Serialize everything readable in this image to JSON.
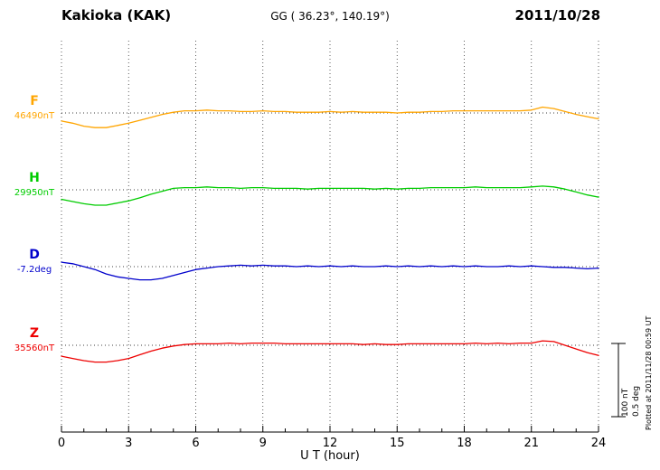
{
  "header": {
    "station": "Kakioka (KAK)",
    "coords": "GG ( 36.23°, 140.19°)",
    "date": "2011/10/28"
  },
  "axis": {
    "xlabel": "U T (hour)"
  },
  "scale_bar": {
    "labels": [
      "100 nT",
      "0.5 deg"
    ]
  },
  "footer_note": "Plotted at 2011/11/28 00:59 UT",
  "chart_data": {
    "type": "line",
    "title": "Kakioka (KAK) magnetogram 2011/10/28",
    "xlabel": "U T (hour)",
    "x_range": [
      0,
      24
    ],
    "x_ticks": [
      0,
      3,
      6,
      9,
      12,
      15,
      18,
      21,
      24
    ],
    "grid": "vertical-dotted",
    "scale": {
      "nT": 100,
      "deg": 0.5
    },
    "series": [
      {
        "name": "F",
        "unit": "nT",
        "baseline_label": "46490nT",
        "baseline_value": 46490,
        "color": "#FFA500",
        "points": [
          [
            0,
            -11
          ],
          [
            0.5,
            -14
          ],
          [
            1,
            -18
          ],
          [
            1.5,
            -20
          ],
          [
            2,
            -20
          ],
          [
            2.5,
            -17
          ],
          [
            3,
            -14
          ],
          [
            3.5,
            -10
          ],
          [
            4,
            -6
          ],
          [
            4.5,
            -2
          ],
          [
            5,
            1
          ],
          [
            5.5,
            3
          ],
          [
            6,
            3
          ],
          [
            6.5,
            4
          ],
          [
            7,
            3
          ],
          [
            7.5,
            3
          ],
          [
            8,
            2
          ],
          [
            8.5,
            2
          ],
          [
            9,
            3
          ],
          [
            9.5,
            2
          ],
          [
            10,
            2
          ],
          [
            10.5,
            1
          ],
          [
            11,
            1
          ],
          [
            11.5,
            1
          ],
          [
            12,
            2
          ],
          [
            12.5,
            1
          ],
          [
            13,
            2
          ],
          [
            13.5,
            1
          ],
          [
            14,
            1
          ],
          [
            14.5,
            1
          ],
          [
            15,
            0
          ],
          [
            15.5,
            1
          ],
          [
            16,
            1
          ],
          [
            16.5,
            2
          ],
          [
            17,
            2
          ],
          [
            17.5,
            3
          ],
          [
            18,
            3
          ],
          [
            18.5,
            3
          ],
          [
            19,
            3
          ],
          [
            19.5,
            3
          ],
          [
            20,
            3
          ],
          [
            20.5,
            3
          ],
          [
            21,
            4
          ],
          [
            21.5,
            8
          ],
          [
            22,
            6
          ],
          [
            22.5,
            2
          ],
          [
            23,
            -2
          ],
          [
            23.5,
            -5
          ],
          [
            24,
            -8
          ]
        ]
      },
      {
        "name": "H",
        "unit": "nT",
        "baseline_label": "29950nT",
        "baseline_value": 29950,
        "color": "#00CC00",
        "points": [
          [
            0,
            -13
          ],
          [
            0.5,
            -16
          ],
          [
            1,
            -19
          ],
          [
            1.5,
            -21
          ],
          [
            2,
            -21
          ],
          [
            2.5,
            -18
          ],
          [
            3,
            -15
          ],
          [
            3.5,
            -11
          ],
          [
            4,
            -6
          ],
          [
            4.5,
            -2
          ],
          [
            5,
            2
          ],
          [
            5.5,
            3
          ],
          [
            6,
            3
          ],
          [
            6.5,
            4
          ],
          [
            7,
            3
          ],
          [
            7.5,
            3
          ],
          [
            8,
            2
          ],
          [
            8.5,
            3
          ],
          [
            9,
            3
          ],
          [
            9.5,
            2
          ],
          [
            10,
            2
          ],
          [
            10.5,
            2
          ],
          [
            11,
            1
          ],
          [
            11.5,
            2
          ],
          [
            12,
            2
          ],
          [
            12.5,
            2
          ],
          [
            13,
            2
          ],
          [
            13.5,
            2
          ],
          [
            14,
            1
          ],
          [
            14.5,
            2
          ],
          [
            15,
            1
          ],
          [
            15.5,
            2
          ],
          [
            16,
            2
          ],
          [
            16.5,
            3
          ],
          [
            17,
            3
          ],
          [
            17.5,
            3
          ],
          [
            18,
            3
          ],
          [
            18.5,
            4
          ],
          [
            19,
            3
          ],
          [
            19.5,
            3
          ],
          [
            20,
            3
          ],
          [
            20.5,
            3
          ],
          [
            21,
            4
          ],
          [
            21.5,
            5
          ],
          [
            22,
            4
          ],
          [
            22.5,
            1
          ],
          [
            23,
            -3
          ],
          [
            23.5,
            -7
          ],
          [
            24,
            -10
          ]
        ]
      },
      {
        "name": "D",
        "unit": "deg",
        "baseline_label": "-7.2deg",
        "baseline_value": -7.2,
        "color": "#0000CC",
        "points": [
          [
            0,
            0.03
          ],
          [
            0.5,
            0.02
          ],
          [
            1,
            0
          ],
          [
            1.5,
            -0.02
          ],
          [
            2,
            -0.05
          ],
          [
            2.5,
            -0.07
          ],
          [
            3,
            -0.08
          ],
          [
            3.5,
            -0.09
          ],
          [
            4,
            -0.09
          ],
          [
            4.5,
            -0.08
          ],
          [
            5,
            -0.06
          ],
          [
            5.5,
            -0.04
          ],
          [
            6,
            -0.02
          ],
          [
            6.5,
            -0.01
          ],
          [
            7,
            0
          ],
          [
            7.5,
            0.005
          ],
          [
            8,
            0.01
          ],
          [
            8.5,
            0.005
          ],
          [
            9,
            0.01
          ],
          [
            9.5,
            0.005
          ],
          [
            10,
            0.005
          ],
          [
            10.5,
            0
          ],
          [
            11,
            0.005
          ],
          [
            11.5,
            0
          ],
          [
            12,
            0.005
          ],
          [
            12.5,
            0
          ],
          [
            13,
            0.005
          ],
          [
            13.5,
            0
          ],
          [
            14,
            0
          ],
          [
            14.5,
            0.005
          ],
          [
            15,
            0
          ],
          [
            15.5,
            0.005
          ],
          [
            16,
            0
          ],
          [
            16.5,
            0.005
          ],
          [
            17,
            0
          ],
          [
            17.5,
            0.005
          ],
          [
            18,
            0
          ],
          [
            18.5,
            0.005
          ],
          [
            19,
            0
          ],
          [
            19.5,
            0
          ],
          [
            20,
            0.005
          ],
          [
            20.5,
            0
          ],
          [
            21,
            0.005
          ],
          [
            21.5,
            0
          ],
          [
            22,
            -0.005
          ],
          [
            22.5,
            -0.005
          ],
          [
            23,
            -0.01
          ],
          [
            23.5,
            -0.015
          ],
          [
            24,
            -0.01
          ]
        ]
      },
      {
        "name": "Z",
        "unit": "nT",
        "baseline_label": "35560nT",
        "baseline_value": 35560,
        "color": "#EE0000",
        "points": [
          [
            0,
            -15
          ],
          [
            0.5,
            -18
          ],
          [
            1,
            -21
          ],
          [
            1.5,
            -23
          ],
          [
            2,
            -23
          ],
          [
            2.5,
            -21
          ],
          [
            3,
            -18
          ],
          [
            3.5,
            -13
          ],
          [
            4,
            -8
          ],
          [
            4.5,
            -4
          ],
          [
            5,
            -1
          ],
          [
            5.5,
            1
          ],
          [
            6,
            2
          ],
          [
            6.5,
            2
          ],
          [
            7,
            2
          ],
          [
            7.5,
            3
          ],
          [
            8,
            2
          ],
          [
            8.5,
            3
          ],
          [
            9,
            3
          ],
          [
            9.5,
            3
          ],
          [
            10,
            2
          ],
          [
            10.5,
            2
          ],
          [
            11,
            2
          ],
          [
            11.5,
            2
          ],
          [
            12,
            2
          ],
          [
            12.5,
            2
          ],
          [
            13,
            2
          ],
          [
            13.5,
            1
          ],
          [
            14,
            2
          ],
          [
            14.5,
            1
          ],
          [
            15,
            1
          ],
          [
            15.5,
            2
          ],
          [
            16,
            2
          ],
          [
            16.5,
            2
          ],
          [
            17,
            2
          ],
          [
            17.5,
            2
          ],
          [
            18,
            2
          ],
          [
            18.5,
            3
          ],
          [
            19,
            2
          ],
          [
            19.5,
            3
          ],
          [
            20,
            2
          ],
          [
            20.5,
            3
          ],
          [
            21,
            3
          ],
          [
            21.5,
            6
          ],
          [
            22,
            5
          ],
          [
            22.5,
            0
          ],
          [
            23,
            -5
          ],
          [
            23.5,
            -10
          ],
          [
            24,
            -14
          ]
        ]
      }
    ]
  }
}
